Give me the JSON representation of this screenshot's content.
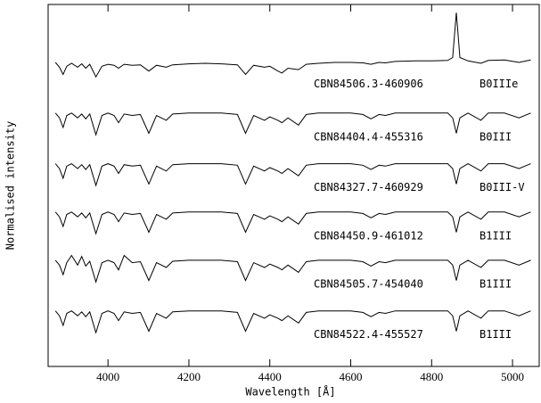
{
  "chart_data": {
    "type": "line",
    "xlabel": "Wavelength [Å]",
    "ylabel": "Normalised intensity",
    "xlim": [
      3852,
      5066
    ],
    "ylim": [
      0,
      7.5
    ],
    "xticks": [
      4000,
      4200,
      4400,
      4600,
      4800,
      5000
    ],
    "x": [
      3870,
      3880,
      3889,
      3898,
      3910,
      3925,
      3935,
      3945,
      3955,
      3970,
      3985,
      4000,
      4015,
      4026,
      4040,
      4060,
      4080,
      4101,
      4120,
      4144,
      4160,
      4200,
      4240,
      4280,
      4320,
      4340,
      4360,
      4387,
      4400,
      4420,
      4430,
      4445,
      4471,
      4490,
      4520,
      4560,
      4600,
      4630,
      4650,
      4670,
      4686,
      4710,
      4760,
      4800,
      4840,
      4852,
      4861,
      4870,
      4890,
      4922,
      4940,
      4980,
      5016,
      5045
    ],
    "series": [
      {
        "name": "CBN84506.3-460906",
        "sptype": "B0IIIe",
        "color": "#000000",
        "values": [
          6.3,
          6.2,
          6.05,
          6.22,
          6.28,
          6.2,
          6.27,
          6.18,
          6.26,
          6.0,
          6.22,
          6.26,
          6.24,
          6.18,
          6.26,
          6.24,
          6.25,
          6.12,
          6.24,
          6.2,
          6.25,
          6.27,
          6.28,
          6.27,
          6.25,
          6.05,
          6.24,
          6.2,
          6.22,
          6.12,
          6.08,
          6.18,
          6.15,
          6.26,
          6.28,
          6.3,
          6.3,
          6.29,
          6.26,
          6.3,
          6.29,
          6.32,
          6.33,
          6.33,
          6.34,
          6.4,
          7.33,
          6.4,
          6.33,
          6.28,
          6.34,
          6.35,
          6.3,
          6.35
        ]
      },
      {
        "name": "CBN84404.4-455316",
        "sptype": "B0III",
        "color": "#000000",
        "values": [
          5.25,
          5.15,
          4.95,
          5.2,
          5.25,
          5.15,
          5.23,
          5.13,
          5.23,
          4.8,
          5.2,
          5.25,
          5.2,
          5.05,
          5.23,
          5.2,
          5.22,
          4.83,
          5.2,
          5.1,
          5.23,
          5.25,
          5.25,
          5.25,
          5.22,
          4.83,
          5.2,
          5.1,
          5.17,
          5.1,
          5.05,
          5.15,
          5.0,
          5.22,
          5.25,
          5.25,
          5.25,
          5.22,
          5.13,
          5.22,
          5.2,
          5.25,
          5.25,
          5.25,
          5.25,
          5.15,
          4.83,
          5.15,
          5.25,
          5.1,
          5.25,
          5.25,
          5.15,
          5.25
        ]
      },
      {
        "name": "CBN84327.7-460929",
        "sptype": "B0III-V",
        "color": "#000000",
        "values": [
          4.2,
          4.1,
          3.9,
          4.15,
          4.2,
          4.1,
          4.18,
          4.08,
          4.18,
          3.75,
          4.15,
          4.2,
          4.15,
          4.0,
          4.18,
          4.15,
          4.17,
          3.78,
          4.15,
          4.05,
          4.18,
          4.2,
          4.2,
          4.2,
          4.17,
          3.78,
          4.15,
          4.05,
          4.12,
          4.05,
          4.0,
          4.1,
          3.95,
          4.17,
          4.2,
          4.2,
          4.2,
          4.17,
          4.08,
          4.17,
          4.15,
          4.2,
          4.2,
          4.2,
          4.2,
          4.1,
          3.78,
          4.1,
          4.2,
          4.05,
          4.2,
          4.2,
          4.1,
          4.2
        ]
      },
      {
        "name": "CBN84450.9-461012",
        "sptype": "B1III",
        "color": "#000000",
        "values": [
          3.2,
          3.1,
          2.9,
          3.15,
          3.2,
          3.1,
          3.18,
          3.08,
          3.18,
          2.75,
          3.15,
          3.2,
          3.15,
          3.0,
          3.18,
          3.15,
          3.17,
          2.78,
          3.15,
          3.05,
          3.18,
          3.2,
          3.2,
          3.2,
          3.17,
          2.78,
          3.15,
          3.05,
          3.12,
          3.05,
          3.0,
          3.1,
          2.95,
          3.17,
          3.2,
          3.2,
          3.2,
          3.17,
          3.08,
          3.17,
          3.15,
          3.2,
          3.2,
          3.2,
          3.2,
          3.1,
          2.78,
          3.1,
          3.2,
          3.05,
          3.2,
          3.2,
          3.1,
          3.2
        ]
      },
      {
        "name": "CBN84505.7-454040",
        "sptype": "B1III",
        "color": "#000000",
        "values": [
          2.2,
          2.1,
          1.9,
          2.15,
          2.3,
          2.1,
          2.28,
          2.08,
          2.18,
          1.75,
          2.15,
          2.2,
          2.15,
          2.0,
          2.3,
          2.15,
          2.17,
          1.78,
          2.15,
          2.05,
          2.18,
          2.2,
          2.2,
          2.2,
          2.17,
          1.78,
          2.15,
          2.05,
          2.12,
          2.05,
          2.0,
          2.1,
          1.95,
          2.17,
          2.2,
          2.2,
          2.2,
          2.17,
          2.08,
          2.17,
          2.15,
          2.2,
          2.2,
          2.2,
          2.2,
          2.1,
          1.78,
          2.1,
          2.2,
          2.05,
          2.2,
          2.2,
          2.1,
          2.2
        ]
      },
      {
        "name": "CBN84522.4-455527",
        "sptype": "B1III",
        "color": "#000000",
        "values": [
          1.15,
          1.05,
          0.85,
          1.1,
          1.15,
          1.05,
          1.13,
          1.03,
          1.13,
          0.7,
          1.1,
          1.15,
          1.1,
          0.95,
          1.13,
          1.1,
          1.12,
          0.73,
          1.1,
          1.0,
          1.13,
          1.15,
          1.15,
          1.15,
          1.12,
          0.73,
          1.1,
          1.0,
          1.07,
          1.0,
          0.95,
          1.05,
          0.9,
          1.12,
          1.15,
          1.15,
          1.15,
          1.12,
          1.03,
          1.12,
          1.1,
          1.15,
          1.15,
          1.15,
          1.15,
          1.05,
          0.73,
          1.05,
          1.15,
          1.0,
          1.15,
          1.15,
          1.05,
          1.15
        ]
      }
    ]
  }
}
